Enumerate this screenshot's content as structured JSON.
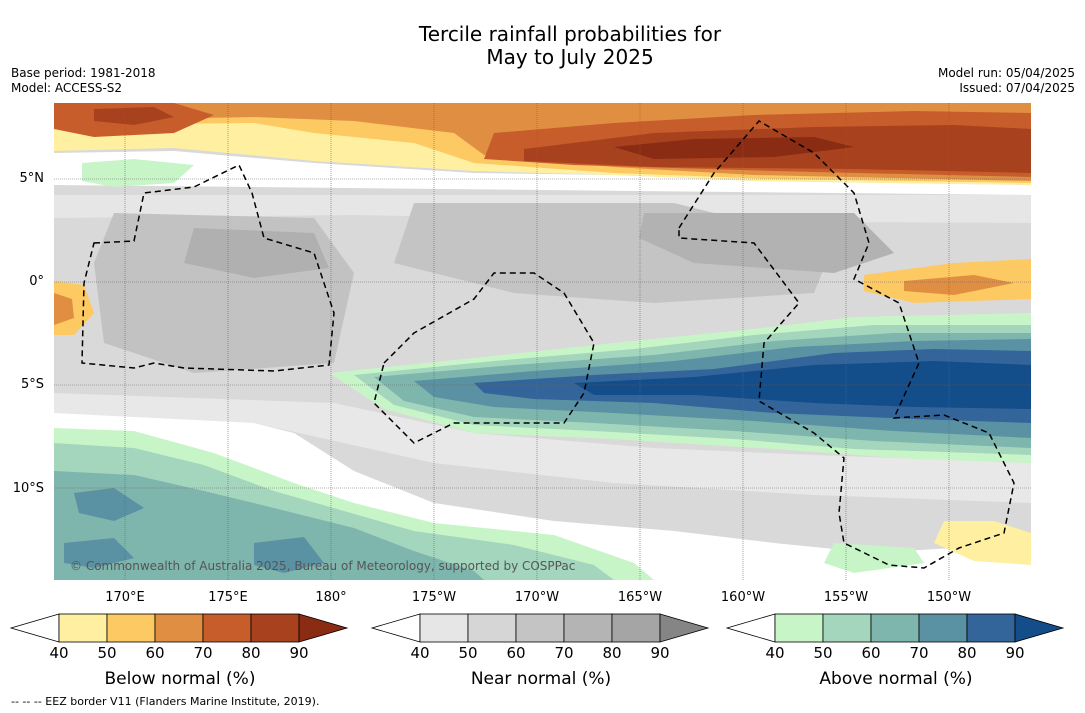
{
  "title": {
    "line1": "Tercile rainfall probabilities for",
    "line2": "May to July 2025"
  },
  "meta_left": {
    "base_period": "Base period: 1981-2018",
    "model": "Model: ACCESS-S2"
  },
  "meta_right": {
    "model_run": "Model run: 05/04/2025",
    "issued": "Issued: 07/04/2025"
  },
  "lat_ticks": [
    "5°N",
    "0°",
    "5°S",
    "10°S"
  ],
  "lon_ticks": [
    "170°E",
    "175°E",
    "180°",
    "175°W",
    "170°W",
    "165°W",
    "160°W",
    "155°W",
    "150°W"
  ],
  "colorbars": [
    {
      "label": "Below normal (%)",
      "ticks": [
        "40",
        "50",
        "60",
        "70",
        "80",
        "90"
      ],
      "colors": [
        "#ffefa1",
        "#fdc962",
        "#e08f42",
        "#c75d2b",
        "#a8411e",
        "#8a2b14"
      ]
    },
    {
      "label": "Near normal (%)",
      "ticks": [
        "40",
        "50",
        "60",
        "70",
        "80",
        "90"
      ],
      "colors": [
        "#e6e6e6",
        "#d6d6d6",
        "#c4c4c4",
        "#b4b4b4",
        "#a5a5a5",
        "#858585"
      ]
    },
    {
      "label": "Above normal (%)",
      "ticks": [
        "40",
        "50",
        "60",
        "70",
        "80",
        "90"
      ],
      "colors": [
        "#c8f5c8",
        "#a3d6bd",
        "#7eb5ad",
        "#5a91a3",
        "#33659a",
        "#134d8a"
      ]
    }
  ],
  "copyright": "© Commonwealth of Australia 2025, Bureau of Meteorology, supported by COSPPac",
  "footnote": "--  --  -- EEZ border V11 (Flanders Marine Institute, 2019)."
}
